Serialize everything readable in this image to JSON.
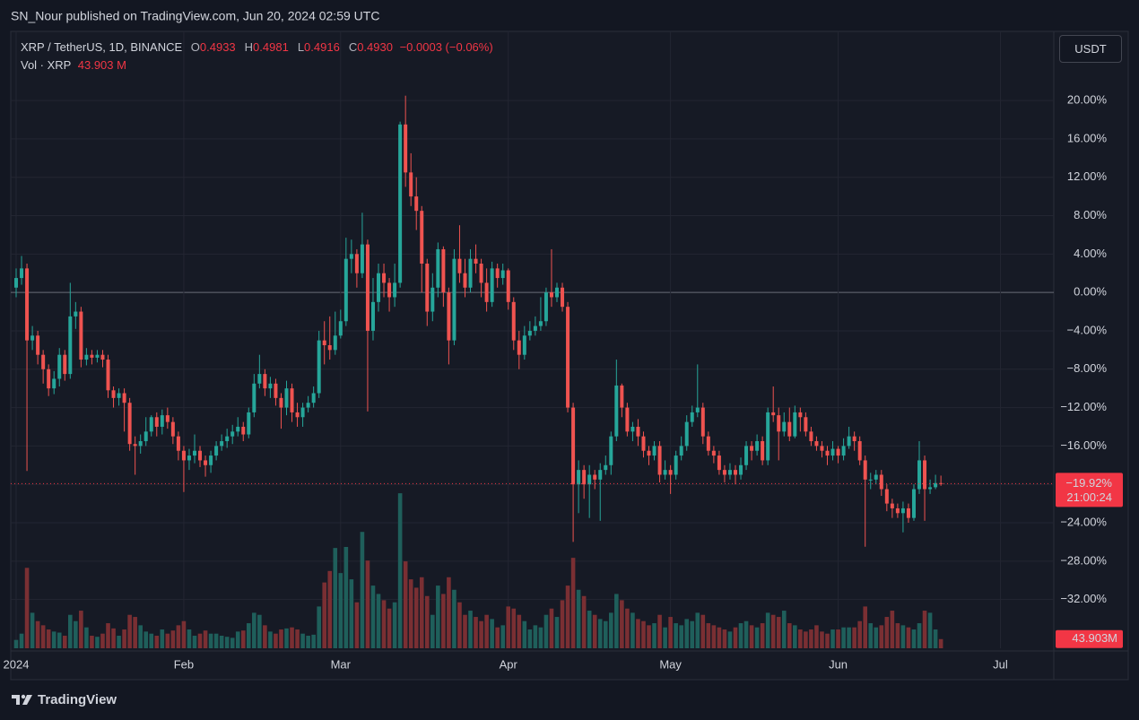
{
  "header": {
    "published": "SN_Nour published on TradingView.com, Jun 20, 2024 02:59 UTC",
    "symbol": "XRP / TetherUS, 1D, BINANCE",
    "ohlc": [
      {
        "key": "O",
        "value": "0.4933"
      },
      {
        "key": "H",
        "value": "0.4981"
      },
      {
        "key": "L",
        "value": "0.4916"
      },
      {
        "key": "C",
        "value": "0.4930"
      }
    ],
    "change": "−0.0003 (−0.06%)",
    "volume_title": "Vol · XRP",
    "volume_value": "43.903 M",
    "currency": "USDT"
  },
  "footer": {
    "brand": "TradingView"
  },
  "chart_data": {
    "type": "candlestick",
    "up_color": "#26a69a",
    "down_color": "#ef5350",
    "volume_up_color": "#1f5f5b",
    "volume_down_color": "#7a2f33",
    "grid": true,
    "ylim": [
      -36.8,
      27.2
    ],
    "yticks": [
      {
        "value": 20,
        "label": "20.00%"
      },
      {
        "value": 16,
        "label": "16.00%"
      },
      {
        "value": 12,
        "label": "12.00%"
      },
      {
        "value": 8,
        "label": "8.00%"
      },
      {
        "value": 4,
        "label": "4.00%"
      },
      {
        "value": 0,
        "label": "0.00%"
      },
      {
        "value": -4,
        "label": "−4.00%"
      },
      {
        "value": -8,
        "label": "−8.00%"
      },
      {
        "value": -12,
        "label": "−12.00%"
      },
      {
        "value": -16,
        "label": "−16.00%"
      },
      {
        "value": -20,
        "label": "−20.00%"
      },
      {
        "value": -24,
        "label": "−24.00%"
      },
      {
        "value": -28,
        "label": "−28.00%"
      },
      {
        "value": -32,
        "label": "−32.00%"
      }
    ],
    "volume_ylim": [
      0,
      1000
    ],
    "last_price_label": "−19.92%",
    "countdown": "21:00:24",
    "last_volume_label": "43.903M",
    "categories": [
      "2024",
      null,
      null,
      null,
      null,
      null,
      null,
      null,
      null,
      null,
      null,
      null,
      null,
      null,
      null,
      null,
      null,
      null,
      null,
      null,
      null,
      null,
      null,
      null,
      null,
      null,
      null,
      null,
      null,
      null,
      null,
      "Feb",
      null,
      null,
      null,
      null,
      null,
      null,
      null,
      null,
      null,
      null,
      null,
      null,
      null,
      null,
      null,
      null,
      null,
      null,
      null,
      null,
      null,
      null,
      null,
      null,
      null,
      null,
      null,
      null,
      "Mar",
      null,
      null,
      null,
      null,
      null,
      null,
      null,
      null,
      null,
      null,
      null,
      null,
      null,
      null,
      null,
      null,
      null,
      null,
      null,
      null,
      null,
      null,
      null,
      null,
      null,
      null,
      null,
      null,
      null,
      null,
      "Apr",
      null,
      null,
      null,
      null,
      null,
      null,
      null,
      null,
      null,
      null,
      null,
      null,
      null,
      null,
      null,
      null,
      null,
      null,
      null,
      null,
      null,
      null,
      null,
      null,
      null,
      null,
      null,
      null,
      null,
      "May",
      null,
      null,
      null,
      null,
      null,
      null,
      null,
      null,
      null,
      null,
      null,
      null,
      null,
      null,
      null,
      null,
      null,
      null,
      null,
      null,
      null,
      null,
      null,
      null,
      null,
      null,
      null,
      null,
      null,
      null,
      "Jun",
      null,
      null,
      null,
      null,
      null,
      null,
      null,
      null,
      null,
      null,
      null,
      null,
      null,
      null,
      null,
      null,
      null,
      null,
      null,
      null,
      null,
      null,
      null,
      null,
      null,
      null,
      null,
      null,
      null,
      "Jul"
    ],
    "open": [
      0.5,
      1.5,
      2.5,
      -5.0,
      -4.5,
      -6.5,
      -8.0,
      -10.0,
      -9.0,
      -6.5,
      -8.5,
      -2.5,
      -2.0,
      -7.0,
      -6.5,
      -6.8,
      -6.5,
      -7.0,
      -10.2,
      -11.0,
      -10.5,
      -11.5,
      -15.8,
      -16.0,
      -15.5,
      -14.5,
      -13.0,
      -14.0,
      -12.8,
      -13.5,
      -15.0,
      -16.5,
      -17.5,
      -17.0,
      -16.5,
      -17.5,
      -18.0,
      -17.0,
      -16.0,
      -15.5,
      -15.0,
      -14.5,
      -14.0,
      -14.8,
      -12.5,
      -9.5,
      -8.5,
      -10.0,
      -9.5,
      -11.0,
      -12.0,
      -10.0,
      -12.5,
      -13.0,
      -12.0,
      -11.5,
      -10.5,
      -5.0,
      -5.5,
      -6.0,
      -4.5,
      -3.0,
      3.5,
      4.0,
      2.0,
      5.0,
      -4.0,
      -1.0,
      2.0,
      1.0,
      -0.5,
      1.0,
      17.5,
      12.5,
      10.0,
      8.5,
      3.0,
      -2.0,
      0.5,
      4.5,
      0.0,
      -5.0,
      3.5,
      2.0,
      0.5,
      3.5,
      3.0,
      1.0,
      -1.0,
      2.5,
      1.5,
      2.3,
      -1.0,
      -5.0,
      -6.5,
      -4.5,
      -4.0,
      -3.5,
      -3.0,
      0.0,
      -0.5,
      0.5,
      -1.5,
      -12.0,
      -20.0,
      -18.5,
      -20.0,
      -19.0,
      -19.5,
      -18.5,
      -18.0,
      -15.0,
      -9.7,
      -12.0,
      -14.5,
      -14.0,
      -15.0,
      -16.5,
      -17.0,
      -16.0,
      -19.0,
      -18.5,
      -19.0,
      -17.0,
      -16.0,
      -13.5,
      -12.5,
      -12.0,
      -15.0,
      -16.5,
      -17.0,
      -18.5,
      -19.0,
      -18.5,
      -19.0,
      -18.0,
      -16.0,
      -16.5,
      -15.5,
      -17.5,
      -12.5,
      -12.8,
      -14.5,
      -13.5,
      -15.0,
      -12.5,
      -13.0,
      -14.5,
      -15.5,
      -16.0,
      -16.5,
      -17.0,
      -16.3,
      -17.0,
      -16.0,
      -15.0,
      -15.5,
      -17.5,
      -19.5,
      -19.5,
      -19.0,
      -20.5,
      -22.0,
      -22.5,
      -23.0,
      -22.5,
      -23.5,
      -20.5,
      -17.5,
      -20.5,
      -20.3,
      -19.87,
      null,
      null,
      null,
      null,
      null,
      null,
      null,
      null,
      null,
      null,
      null
    ],
    "high": [
      2.5,
      3.8,
      3.0,
      -3.5,
      -4.0,
      -6.0,
      -7.5,
      -8.2,
      -5.8,
      -6.0,
      1.0,
      -1.0,
      -1.5,
      -5.8,
      -6.0,
      -6.0,
      -6.0,
      -6.5,
      -9.8,
      -10.0,
      -10.0,
      -11.0,
      -15.0,
      -14.8,
      -13.0,
      -12.8,
      -12.5,
      -12.2,
      -12.0,
      -13.0,
      -14.5,
      -16.0,
      -16.3,
      -14.8,
      -16.0,
      -17.0,
      -16.5,
      -15.5,
      -14.8,
      -14.2,
      -13.8,
      -13.0,
      -13.5,
      -12.0,
      -8.5,
      -6.5,
      -8.0,
      -8.8,
      -9.0,
      -10.5,
      -9.2,
      -9.5,
      -11.5,
      -11.5,
      -10.8,
      -9.8,
      -4.0,
      -3.0,
      -2.5,
      -2.0,
      -1.8,
      5.7,
      5.5,
      4.5,
      8.3,
      5.5,
      1.5,
      3.0,
      3.0,
      1.5,
      3.0,
      17.8,
      20.5,
      14.5,
      12.0,
      9.0,
      3.5,
      2.0,
      5.2,
      4.8,
      0.5,
      4.5,
      7.0,
      3.5,
      4.5,
      5.0,
      3.5,
      2.5,
      3.2,
      3.0,
      3.0,
      2.5,
      -0.5,
      -4.0,
      -3.5,
      -3.0,
      -2.5,
      -0.5,
      0.5,
      4.5,
      1.0,
      1.0,
      -1.0,
      -11.5,
      -17.5,
      -18.0,
      -18.0,
      -18.5,
      -17.8,
      -17.0,
      -14.5,
      -7.0,
      -9.5,
      -11.5,
      -13.5,
      -13.2,
      -14.5,
      -16.0,
      -15.5,
      -15.5,
      -17.5,
      -18.0,
      -16.5,
      -15.0,
      -12.8,
      -11.8,
      -7.5,
      -11.5,
      -14.5,
      -16.0,
      -16.5,
      -18.0,
      -17.8,
      -18.0,
      -17.2,
      -15.5,
      -15.5,
      -14.8,
      -15.0,
      -12.0,
      -9.8,
      -12.0,
      -12.5,
      -12.0,
      -11.8,
      -12.0,
      -12.5,
      -14.0,
      -15.0,
      -15.5,
      -16.0,
      -15.5,
      -16.0,
      -15.2,
      -14.0,
      -14.5,
      -15.0,
      -17.0,
      -18.8,
      -18.5,
      -18.5,
      -20.0,
      -21.5,
      -22.0,
      -21.8,
      -22.0,
      -20.0,
      -15.5,
      -17.0,
      -19.5,
      -19.0,
      -19.09,
      null,
      null,
      null,
      null,
      null,
      null,
      null,
      null,
      null,
      null,
      null
    ],
    "low": [
      -0.5,
      0.8,
      -18.6,
      -6.0,
      -7.5,
      -9.5,
      -10.8,
      -10.6,
      -9.8,
      -9.2,
      -9.0,
      -3.8,
      -7.8,
      -7.6,
      -7.5,
      -7.3,
      -7.8,
      -11.0,
      -12.0,
      -11.8,
      -14.5,
      -16.5,
      -19.0,
      -16.8,
      -16.0,
      -15.0,
      -15.0,
      -14.8,
      -14.2,
      -15.8,
      -17.5,
      -20.8,
      -18.5,
      -17.8,
      -18.2,
      -19.2,
      -18.8,
      -17.5,
      -16.5,
      -16.2,
      -15.8,
      -15.0,
      -15.5,
      -15.2,
      -13.0,
      -10.0,
      -10.8,
      -11.0,
      -11.8,
      -14.2,
      -12.8,
      -13.5,
      -14.0,
      -14.0,
      -12.5,
      -12.0,
      -11.0,
      -7.5,
      -7.0,
      -6.5,
      -4.8,
      -3.5,
      2.0,
      0.5,
      1.5,
      -12.4,
      -5.0,
      -2.0,
      -0.5,
      -2.0,
      -1.5,
      0.5,
      11.0,
      9.0,
      6.5,
      0.0,
      -3.5,
      -3.0,
      -0.5,
      -1.5,
      -7.5,
      -5.5,
      1.0,
      -0.5,
      0.0,
      2.0,
      -0.5,
      -2.0,
      -1.5,
      0.5,
      0.8,
      -1.8,
      -6.0,
      -8.0,
      -7.0,
      -5.0,
      -4.5,
      -4.0,
      -3.5,
      -1.5,
      -1.0,
      -2.0,
      -12.5,
      -26.0,
      -23.0,
      -21.5,
      -23.5,
      -20.5,
      -23.8,
      -19.0,
      -19.0,
      -15.5,
      -13.0,
      -15.0,
      -15.5,
      -16.0,
      -17.2,
      -18.0,
      -17.5,
      -19.8,
      -19.5,
      -21.0,
      -19.5,
      -17.5,
      -16.5,
      -14.0,
      -13.0,
      -15.8,
      -17.0,
      -17.8,
      -19.0,
      -19.8,
      -19.5,
      -20.0,
      -19.5,
      -18.5,
      -17.5,
      -17.0,
      -18.0,
      -18.0,
      -13.5,
      -17.5,
      -15.0,
      -15.5,
      -15.2,
      -14.5,
      -15.0,
      -16.0,
      -16.5,
      -17.2,
      -18.0,
      -17.5,
      -17.8,
      -17.5,
      -16.3,
      -16.5,
      -18.0,
      -26.5,
      -20.5,
      -20.0,
      -21.2,
      -22.8,
      -23.5,
      -23.5,
      -25.0,
      -24.0,
      -23.8,
      -21.0,
      -23.8,
      -21.0,
      -20.5,
      -20.15,
      null,
      null,
      null,
      null,
      null,
      null,
      null,
      null,
      null,
      null,
      null
    ],
    "close": [
      1.5,
      2.5,
      -5.0,
      -4.5,
      -6.5,
      -8.0,
      -10.0,
      -9.0,
      -6.5,
      -8.5,
      -2.5,
      -2.0,
      -7.0,
      -6.5,
      -6.8,
      -6.5,
      -7.0,
      -10.2,
      -11.0,
      -10.5,
      -11.5,
      -15.8,
      -16.0,
      -15.5,
      -14.5,
      -13.0,
      -14.0,
      -12.8,
      -13.5,
      -15.0,
      -16.5,
      -17.5,
      -17.0,
      -16.5,
      -17.5,
      -18.0,
      -17.0,
      -16.0,
      -15.5,
      -15.0,
      -14.5,
      -14.0,
      -14.8,
      -12.5,
      -9.5,
      -8.5,
      -10.0,
      -9.5,
      -11.0,
      -12.0,
      -10.0,
      -12.5,
      -13.0,
      -12.0,
      -11.5,
      -10.5,
      -5.0,
      -5.5,
      -6.0,
      -4.5,
      -3.0,
      3.5,
      4.0,
      2.0,
      5.0,
      -4.0,
      -1.0,
      2.0,
      1.0,
      -0.5,
      1.0,
      17.5,
      12.5,
      10.0,
      8.5,
      3.0,
      -2.0,
      0.5,
      4.5,
      0.0,
      -5.0,
      3.5,
      2.0,
      0.5,
      3.5,
      3.0,
      1.0,
      -1.0,
      2.5,
      1.5,
      2.3,
      -1.0,
      -5.0,
      -6.5,
      -4.5,
      -4.0,
      -3.5,
      -3.0,
      0.0,
      -0.5,
      0.5,
      -1.5,
      -12.0,
      -20.0,
      -18.5,
      -20.0,
      -19.0,
      -19.5,
      -18.5,
      -18.0,
      -15.0,
      -9.7,
      -12.0,
      -14.5,
      -14.0,
      -15.0,
      -16.5,
      -17.0,
      -16.0,
      -19.0,
      -18.5,
      -19.0,
      -17.0,
      -16.0,
      -13.5,
      -12.5,
      -12.0,
      -15.0,
      -16.5,
      -17.0,
      -18.5,
      -19.0,
      -18.5,
      -19.0,
      -18.0,
      -16.0,
      -16.5,
      -15.5,
      -17.5,
      -12.5,
      -12.8,
      -14.5,
      -13.5,
      -15.0,
      -12.5,
      -13.0,
      -14.5,
      -15.5,
      -16.0,
      -16.5,
      -17.0,
      -16.3,
      -17.0,
      -16.0,
      -15.0,
      -15.5,
      -17.5,
      -19.5,
      -19.5,
      -19.0,
      -20.5,
      -22.0,
      -22.5,
      -23.0,
      -22.5,
      -23.5,
      -20.5,
      -17.5,
      -20.5,
      -20.3,
      -19.87,
      -19.92,
      null,
      null,
      null,
      null,
      null,
      null,
      null,
      null,
      null,
      null,
      null
    ],
    "volume": [
      40,
      70,
      385,
      170,
      130,
      110,
      90,
      80,
      75,
      60,
      160,
      130,
      180,
      100,
      60,
      55,
      70,
      120,
      95,
      60,
      90,
      160,
      150,
      110,
      80,
      70,
      60,
      90,
      70,
      85,
      110,
      130,
      90,
      60,
      70,
      85,
      70,
      70,
      60,
      55,
      50,
      80,
      85,
      120,
      170,
      160,
      110,
      80,
      70,
      90,
      95,
      100,
      90,
      70,
      60,
      65,
      200,
      315,
      370,
      480,
      360,
      485,
      330,
      220,
      557,
      420,
      300,
      260,
      230,
      190,
      220,
      742,
      416,
      330,
      290,
      340,
      250,
      160,
      300,
      260,
      340,
      280,
      220,
      160,
      180,
      150,
      130,
      160,
      140,
      100,
      110,
      200,
      190,
      160,
      130,
      90,
      110,
      100,
      160,
      190,
      150,
      230,
      300,
      433,
      280,
      250,
      180,
      160,
      140,
      130,
      170,
      260,
      230,
      190,
      170,
      140,
      130,
      110,
      120,
      160,
      100,
      150,
      120,
      110,
      140,
      130,
      170,
      160,
      120,
      110,
      100,
      90,
      80,
      100,
      120,
      130,
      110,
      100,
      120,
      170,
      160,
      150,
      180,
      120,
      110,
      90,
      80,
      90,
      110,
      80,
      70,
      90,
      90,
      100,
      100,
      100,
      130,
      200,
      120,
      100,
      110,
      150,
      180,
      120,
      110,
      100,
      90,
      120,
      180,
      170,
      90,
      43.903,
      null,
      null,
      null,
      null,
      null,
      null,
      null,
      null,
      null,
      null,
      null
    ]
  }
}
